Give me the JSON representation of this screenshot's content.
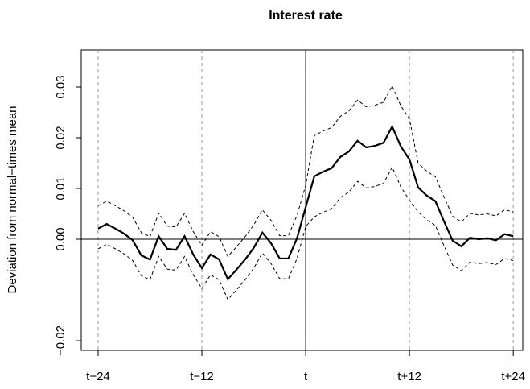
{
  "chart_data": {
    "type": "line",
    "title": "Interest rate",
    "ylabel": "Deviation from normal−times mean",
    "x": [
      -24,
      -23,
      -22,
      -21,
      -20,
      -19,
      -18,
      -17,
      -16,
      -15,
      -14,
      -13,
      -12,
      -11,
      -10,
      -9,
      -8,
      -7,
      -6,
      -5,
      -4,
      -3,
      -2,
      -1,
      0,
      1,
      2,
      3,
      4,
      5,
      6,
      7,
      8,
      9,
      10,
      11,
      12,
      13,
      14,
      15,
      16,
      17,
      18,
      19,
      20,
      21,
      22,
      23,
      24
    ],
    "series": [
      {
        "color": "#000000",
        "style": "solid",
        "width": 2.2,
        "values": [
          0.0021,
          0.003,
          0.0021,
          0.0011,
          -0.0002,
          -0.0032,
          -0.004,
          0.0006,
          -0.0019,
          -0.0021,
          0.0006,
          -0.003,
          -0.0057,
          -0.003,
          -0.004,
          -0.0079,
          -0.006,
          -0.004,
          -0.0017,
          0.0013,
          -0.0008,
          -0.0038,
          -0.0038,
          0.0002,
          0.0063,
          0.0124,
          0.0133,
          0.014,
          0.0162,
          0.0173,
          0.0194,
          0.0181,
          0.0184,
          0.019,
          0.0222,
          0.0183,
          0.0157,
          0.0102,
          0.0086,
          0.0075,
          0.0035,
          -0.0003,
          -0.0014,
          0.0003,
          0.0,
          0.0002,
          -0.0002,
          0.001,
          0.0006
        ]
      },
      {
        "color": "#000000",
        "style": "dashed",
        "width": 1,
        "values": [
          0.0066,
          0.0075,
          0.0066,
          0.0056,
          0.0043,
          0.0013,
          0.0005,
          0.0051,
          0.0026,
          0.0024,
          0.0051,
          0.0015,
          -0.0012,
          0.0015,
          0.0005,
          -0.0034,
          -0.0015,
          0.0005,
          0.0028,
          0.0058,
          0.0037,
          0.0007,
          0.0007,
          0.0047,
          0.0106,
          0.0204,
          0.0213,
          0.022,
          0.0242,
          0.0253,
          0.0274,
          0.0261,
          0.0264,
          0.027,
          0.0302,
          0.0263,
          0.0237,
          0.015,
          0.0134,
          0.0123,
          0.0083,
          0.0045,
          0.0034,
          0.0051,
          0.0048,
          0.005,
          0.0046,
          0.0058,
          0.0054
        ]
      },
      {
        "color": "#000000",
        "style": "dashed",
        "width": 1,
        "values": [
          -0.0019,
          -0.001,
          -0.0019,
          -0.0029,
          -0.0042,
          -0.0072,
          -0.008,
          -0.0034,
          -0.0059,
          -0.0061,
          -0.0034,
          -0.007,
          -0.0097,
          -0.007,
          -0.008,
          -0.0119,
          -0.01,
          -0.008,
          -0.0057,
          -0.0027,
          -0.0048,
          -0.0078,
          -0.0078,
          -0.0038,
          0.0025,
          0.0044,
          0.0053,
          0.006,
          0.0082,
          0.0093,
          0.0114,
          0.0101,
          0.0104,
          0.011,
          0.0142,
          0.0103,
          0.0077,
          0.0054,
          0.0038,
          0.0027,
          -0.0013,
          -0.0051,
          -0.0062,
          -0.0045,
          -0.0048,
          -0.0046,
          -0.005,
          -0.0038,
          -0.0042
        ]
      }
    ],
    "xlim": [
      -25.95,
      25.1
    ],
    "ylim": [
      -0.0219,
      0.0373
    ],
    "xticks": [
      {
        "value": -24,
        "label": "t−24"
      },
      {
        "value": -12,
        "label": "t−12"
      },
      {
        "value": 0,
        "label": "t"
      },
      {
        "value": 12,
        "label": "t+12"
      },
      {
        "value": 24,
        "label": "t+24"
      }
    ],
    "yticks": [
      {
        "value": -0.02,
        "label": "−0.02"
      },
      {
        "value": 0,
        "label": "0.00"
      },
      {
        "value": 0.01,
        "label": "0.01"
      },
      {
        "value": 0.02,
        "label": "0.02"
      },
      {
        "value": 0.03,
        "label": "0.03"
      }
    ],
    "x_grid": true,
    "hline": 0,
    "vline": 0
  }
}
